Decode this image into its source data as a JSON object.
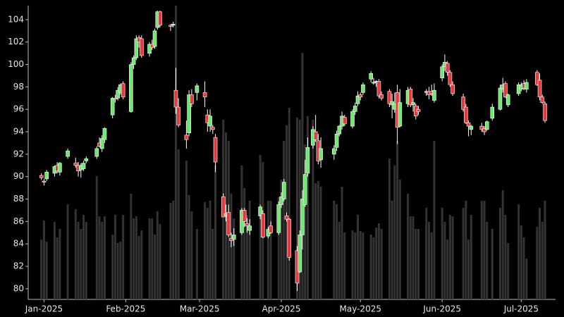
{
  "chart_data": {
    "type": "candlestick",
    "x": [
      -1,
      0,
      1,
      4,
      5,
      6,
      9,
      12,
      13,
      14,
      15,
      16,
      20,
      21,
      22,
      23,
      26,
      27,
      28,
      29,
      30,
      33,
      34,
      35,
      36,
      37,
      40,
      41,
      42,
      43,
      44,
      48,
      49,
      50,
      51,
      54,
      55,
      56,
      58,
      61,
      62,
      63,
      64,
      65,
      68,
      69,
      70,
      71,
      72,
      75,
      76,
      77,
      78,
      82,
      83,
      85,
      86,
      89,
      90,
      91,
      92,
      93,
      96,
      97,
      98,
      99,
      100,
      102,
      103,
      104,
      105,
      110,
      111,
      112,
      113,
      114,
      117,
      118,
      119,
      120,
      121,
      124,
      125,
      126,
      127,
      128,
      131,
      132,
      133,
      134,
      135,
      138,
      139,
      140,
      141,
      142,
      145,
      146,
      147,
      148,
      151,
      152,
      153,
      154,
      155,
      159,
      160,
      161,
      162,
      166,
      167,
      168,
      170,
      173,
      174,
      175,
      176,
      180,
      181,
      182,
      183,
      187,
      188,
      189,
      190
    ],
    "open": [
      90.1,
      89.6,
      89.8,
      90.3,
      91,
      90.4,
      91.8,
      91.2,
      91,
      90.6,
      90.7,
      91.4,
      91.8,
      93,
      92.5,
      93.3,
      95.5,
      97,
      97,
      97.5,
      98.3,
      95.8,
      100,
      100.6,
      102.4,
      102.3,
      101,
      101.8,
      101.6,
      103.3,
      104.7,
      103.5,
      103.5,
      97.7,
      96.2,
      93.7,
      93.9,
      97.3,
      97.5,
      97.5,
      95.5,
      94.5,
      94.4,
      93.5,
      88.2,
      86.5,
      86.8,
      84.5,
      84.4,
      85,
      87,
      85.8,
      85.2,
      86.5,
      86.7,
      84.7,
      85.6,
      85,
      87.5,
      88,
      86.5,
      86.2,
      83.4,
      81.5,
      84.8,
      87.5,
      90.3,
      92.8,
      94,
      93.2,
      91.5,
      92,
      92.6,
      93.8,
      94.5,
      95.3,
      94.5,
      95.8,
      96.5,
      97.3,
      97.5,
      98.7,
      98.4,
      98.4,
      98.5,
      97.3,
      97.6,
      96.4,
      96,
      97.5,
      94.5,
      96.5,
      97.8,
      96.4,
      96.3,
      96,
      97.5,
      97.6,
      97.6,
      96.8,
      98.8,
      99.8,
      100.1,
      99.3,
      98.2,
      97.1,
      96.2,
      94.8,
      94.2,
      94.5,
      94.3,
      94.2,
      95.2,
      96,
      97.8,
      98.3,
      96.4,
      97.4,
      97.8,
      98.3,
      97.8,
      99.3,
      98.6,
      97.1,
      96.5
    ],
    "high": [
      90.3,
      89.8,
      90.6,
      91,
      91.3,
      91.3,
      92.5,
      91.7,
      91.3,
      91.2,
      91.4,
      91.8,
      92.7,
      93.5,
      93.7,
      94.4,
      97.1,
      97.3,
      98,
      98.3,
      98.5,
      100.2,
      100.8,
      102.6,
      102.6,
      102.6,
      102,
      102.2,
      103.2,
      104.8,
      104.8,
      103.6,
      103.8,
      99.7,
      97,
      95,
      97.7,
      97.8,
      98.3,
      98.5,
      96,
      96,
      94.6,
      93.8,
      88.5,
      87.5,
      87.5,
      85,
      85.4,
      87.2,
      87.2,
      86.3,
      86.2,
      87.5,
      87,
      85.5,
      86,
      87.8,
      88.6,
      89.8,
      86.8,
      86.3,
      83.8,
      85.2,
      88.8,
      91.5,
      93.5,
      94.5,
      95.5,
      93.8,
      93.5,
      92.8,
      94.1,
      94.6,
      95.8,
      95.5,
      96,
      96.6,
      97.6,
      97.5,
      98.4,
      99.4,
      98.8,
      98.6,
      98.7,
      97.6,
      97.8,
      97.4,
      97.5,
      98.2,
      97.8,
      98,
      98,
      97,
      96.5,
      96.3,
      97.8,
      98,
      98.2,
      98.3,
      100,
      100.9,
      100.3,
      99.5,
      98.5,
      97.4,
      96.5,
      95,
      94.6,
      94.8,
      94.5,
      95,
      96.5,
      98.2,
      98.8,
      98.5,
      97.4,
      98.4,
      98.4,
      98.6,
      98.7,
      99.5,
      99.2,
      97.3,
      96.7
    ],
    "low": [
      89.7,
      89.2,
      89.6,
      90,
      90.3,
      90.1,
      91.6,
      90.8,
      90,
      89.9,
      90.5,
      91.2,
      91.6,
      92.6,
      92.2,
      93,
      95.2,
      96.6,
      96.8,
      97.3,
      96.9,
      95.7,
      99.6,
      100.4,
      101.5,
      100.6,
      100.7,
      101.3,
      101.4,
      103.1,
      103.3,
      103,
      103.3,
      95.6,
      94.4,
      92.5,
      93.6,
      96.2,
      96.8,
      96.2,
      94,
      94,
      93.8,
      90.4,
      86.4,
      86,
      84.6,
      83.7,
      83.8,
      84.8,
      85.5,
      85,
      84.8,
      86.2,
      84.5,
      84.5,
      84.9,
      84.8,
      87.2,
      87.8,
      86,
      82.5,
      79.8,
      81.4,
      83.5,
      87.3,
      90,
      92.5,
      93.1,
      91.1,
      90.8,
      91.5,
      92.3,
      93.6,
      94.2,
      94.5,
      94.3,
      95.5,
      96.3,
      96.8,
      97.3,
      98.4,
      98.2,
      98,
      97,
      96.8,
      96.2,
      95.2,
      95.7,
      92.9,
      94.4,
      96.2,
      96.2,
      95.8,
      95.1,
      95.5,
      97.2,
      96.9,
      97.2,
      96.6,
      98.5,
      99.4,
      99,
      98,
      97.2,
      95.8,
      94.7,
      93.6,
      93.7,
      94,
      93.7,
      94.1,
      95,
      95.9,
      97.5,
      97,
      96.2,
      97.2,
      97.6,
      97.7,
      97.5,
      98.1,
      96.8,
      96.5,
      94.8
    ],
    "close": [
      89.9,
      89.5,
      90.4,
      90.9,
      90.5,
      91.2,
      92.3,
      91,
      90.5,
      91,
      91.2,
      91.6,
      92.5,
      92.7,
      93.4,
      94.3,
      97,
      96.9,
      97.7,
      98.2,
      97.1,
      100,
      100.6,
      102.3,
      102,
      100.8,
      101.8,
      101.5,
      103,
      104.7,
      103.5,
      103.4,
      103.6,
      96.2,
      94.6,
      93.3,
      97.3,
      96.5,
      98.1,
      97.1,
      94.8,
      95.4,
      94.2,
      91.3,
      86.4,
      86.7,
      84.8,
      84.3,
      84.8,
      87,
      86,
      85.6,
      85.6,
      87.3,
      84.6,
      85.3,
      85,
      87.5,
      88.2,
      89.5,
      86.2,
      82.8,
      80.5,
      84.8,
      88,
      90.2,
      92.6,
      94.2,
      93.3,
      91.4,
      92.5,
      92.5,
      93.8,
      94.5,
      95.4,
      94.7,
      95.8,
      96.3,
      97.2,
      97.1,
      98.2,
      99.2,
      98.4,
      98.5,
      97.2,
      97,
      96.5,
      96.7,
      96.5,
      94.4,
      96.6,
      97.7,
      96.4,
      96.6,
      95.4,
      95.8,
      97.6,
      97.3,
      97.4,
      97.7,
      99.8,
      100.2,
      99.3,
      98.2,
      97.4,
      96,
      94.8,
      94.5,
      94.5,
      94.2,
      94,
      94.9,
      96.2,
      97.9,
      98.2,
      97.1,
      97.3,
      98.2,
      98.2,
      97.9,
      98.4,
      98.2,
      97.1,
      96.6,
      95
    ],
    "volume": [
      85,
      112,
      82,
      110,
      88,
      100,
      135,
      128,
      110,
      100,
      120,
      110,
      175,
      118,
      110,
      118,
      92,
      120,
      80,
      82,
      120,
      150,
      115,
      118,
      90,
      98,
      115,
      115,
      92,
      125,
      107,
      137,
      140,
      417,
      213,
      197,
      148,
      125,
      100,
      138,
      130,
      140,
      100,
      190,
      255,
      237,
      225,
      150,
      115,
      190,
      158,
      120,
      140,
      205,
      195,
      140,
      140,
      145,
      170,
      225,
      247,
      272,
      258,
      255,
      350,
      220,
      260,
      255,
      165,
      168,
      160,
      140,
      135,
      110,
      160,
      95,
      98,
      95,
      120,
      97,
      95,
      92,
      88,
      102,
      108,
      100,
      200,
      140,
      190,
      225,
      170,
      150,
      118,
      118,
      100,
      100,
      130,
      110,
      95,
      225,
      130,
      110,
      85,
      120,
      118,
      130,
      140,
      85,
      120,
      140,
      140,
      110,
      100,
      130,
      155,
      120,
      80,
      135,
      105,
      88,
      58,
      103,
      130,
      110,
      140
    ],
    "up_color": "#6fe86f",
    "down_color": "#e8383d",
    "volume_color": "#333333",
    "xlim": [
      -6,
      194
    ],
    "xticks": [
      {
        "value": 0,
        "label": "Jan-2025"
      },
      {
        "value": 31,
        "label": "Feb-2025"
      },
      {
        "value": 59,
        "label": "Mar-2025"
      },
      {
        "value": 90,
        "label": "Apr-2025"
      },
      {
        "value": 120,
        "label": "May-2025"
      },
      {
        "value": 151,
        "label": "Jun-2025"
      },
      {
        "value": 181,
        "label": "Jul-2025"
      }
    ],
    "ylim": [
      79.05,
      105.25
    ],
    "yticks": [
      80,
      82,
      84,
      86,
      88,
      90,
      92,
      94,
      96,
      98,
      100,
      102,
      104
    ]
  }
}
